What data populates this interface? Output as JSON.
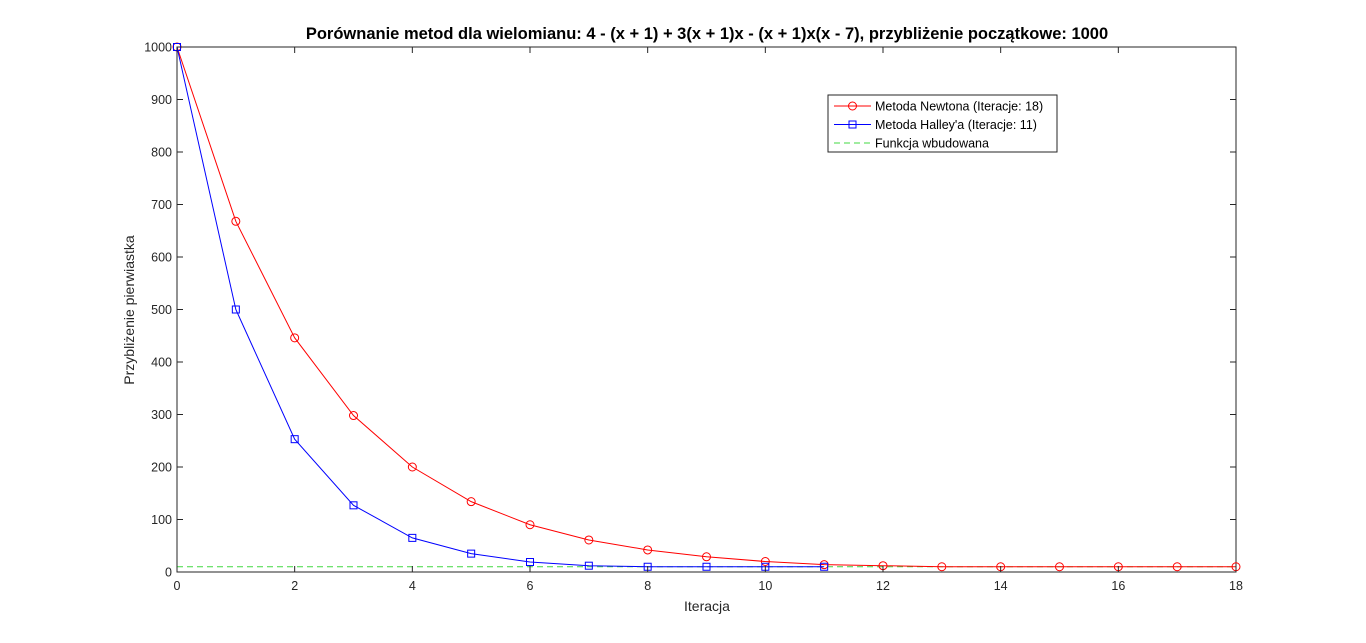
{
  "chart_data": {
    "type": "line",
    "title": "Porównanie metod dla wielomianu: 4 - (x + 1) + 3(x + 1)x - (x + 1)x(x - 7), przybliżenie początkowe: 1000",
    "xlabel": "Iteracja",
    "ylabel": "Przybliżenie pierwiastka",
    "xlim": [
      0,
      18
    ],
    "ylim": [
      0,
      1000
    ],
    "xticks": [
      0,
      2,
      4,
      6,
      8,
      10,
      12,
      14,
      16,
      18
    ],
    "yticks": [
      0,
      100,
      200,
      300,
      400,
      500,
      600,
      700,
      800,
      900,
      1000
    ],
    "grid": false,
    "legend_position": "top-right",
    "series": [
      {
        "name": "Metoda Newtona (Iteracje: 18)",
        "color": "#ff0000",
        "marker": "circle",
        "line_style": "solid",
        "x": [
          0,
          1,
          2,
          3,
          4,
          5,
          6,
          7,
          8,
          9,
          10,
          11,
          12,
          13,
          14,
          15,
          16,
          17,
          18
        ],
        "y": [
          1000,
          668,
          446,
          298,
          200,
          134,
          90,
          61,
          42,
          29,
          20,
          14,
          12,
          10,
          10,
          10,
          10,
          10,
          10
        ]
      },
      {
        "name": "Metoda Halley'a (Iteracje: 11)",
        "color": "#0000ff",
        "marker": "square",
        "line_style": "solid",
        "x": [
          0,
          1,
          2,
          3,
          4,
          5,
          6,
          7,
          8,
          9,
          10,
          11
        ],
        "y": [
          1000,
          500,
          253,
          127,
          65,
          35,
          19,
          12,
          10,
          10,
          10,
          10
        ]
      },
      {
        "name": "Funkcja wbudowana",
        "color": "#00cc00",
        "marker": "none",
        "line_style": "dashed",
        "x": [
          0,
          18
        ],
        "y": [
          10,
          10
        ]
      }
    ]
  }
}
